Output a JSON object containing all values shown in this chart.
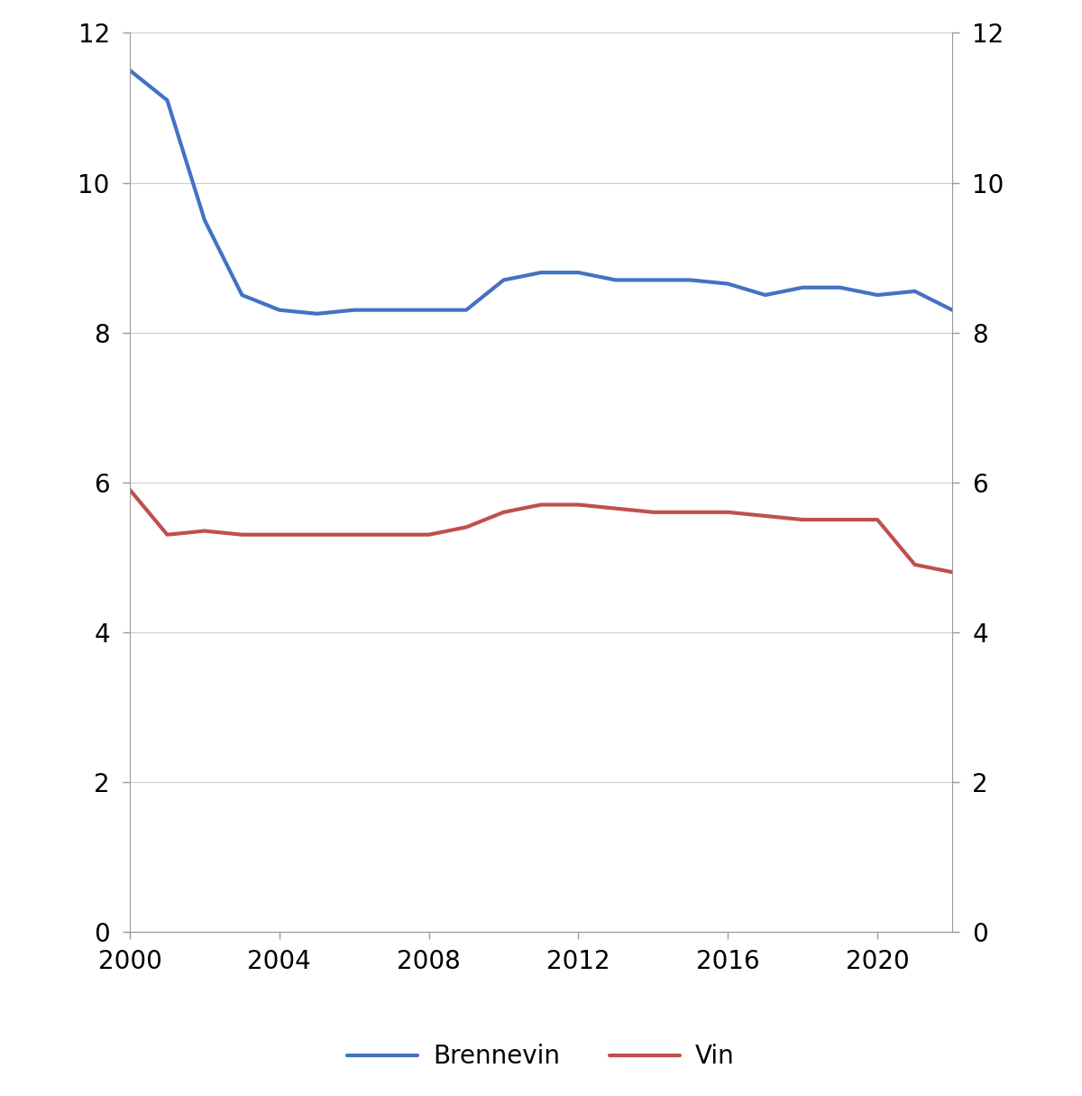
{
  "years": [
    2000,
    2001,
    2002,
    2003,
    2004,
    2005,
    2006,
    2007,
    2008,
    2009,
    2010,
    2011,
    2012,
    2013,
    2014,
    2015,
    2016,
    2017,
    2018,
    2019,
    2020,
    2021,
    2022
  ],
  "brennevin": [
    11.5,
    11.1,
    9.5,
    8.5,
    8.3,
    8.25,
    8.3,
    8.3,
    8.3,
    8.3,
    8.7,
    8.8,
    8.8,
    8.7,
    8.7,
    8.7,
    8.65,
    8.5,
    8.6,
    8.6,
    8.5,
    8.55,
    8.3
  ],
  "vin": [
    5.9,
    5.3,
    5.35,
    5.3,
    5.3,
    5.3,
    5.3,
    5.3,
    5.3,
    5.4,
    5.6,
    5.7,
    5.7,
    5.65,
    5.6,
    5.6,
    5.6,
    5.55,
    5.5,
    5.5,
    5.5,
    4.9,
    4.8
  ],
  "brennevin_color": "#4472C4",
  "vin_color": "#C0504D",
  "line_width": 3.0,
  "ylim": [
    0,
    12
  ],
  "yticks": [
    0,
    2,
    4,
    6,
    8,
    10,
    12
  ],
  "xlim_start": 2000,
  "xlim_end": 2022,
  "xticks": [
    2000,
    2004,
    2008,
    2012,
    2016,
    2020
  ],
  "legend_brennevin": "Brennevin",
  "legend_vin": "Vin",
  "background_color": "#ffffff",
  "tick_fontsize": 20,
  "legend_fontsize": 20,
  "spine_color": "#999999",
  "grid_color": "#cccccc"
}
